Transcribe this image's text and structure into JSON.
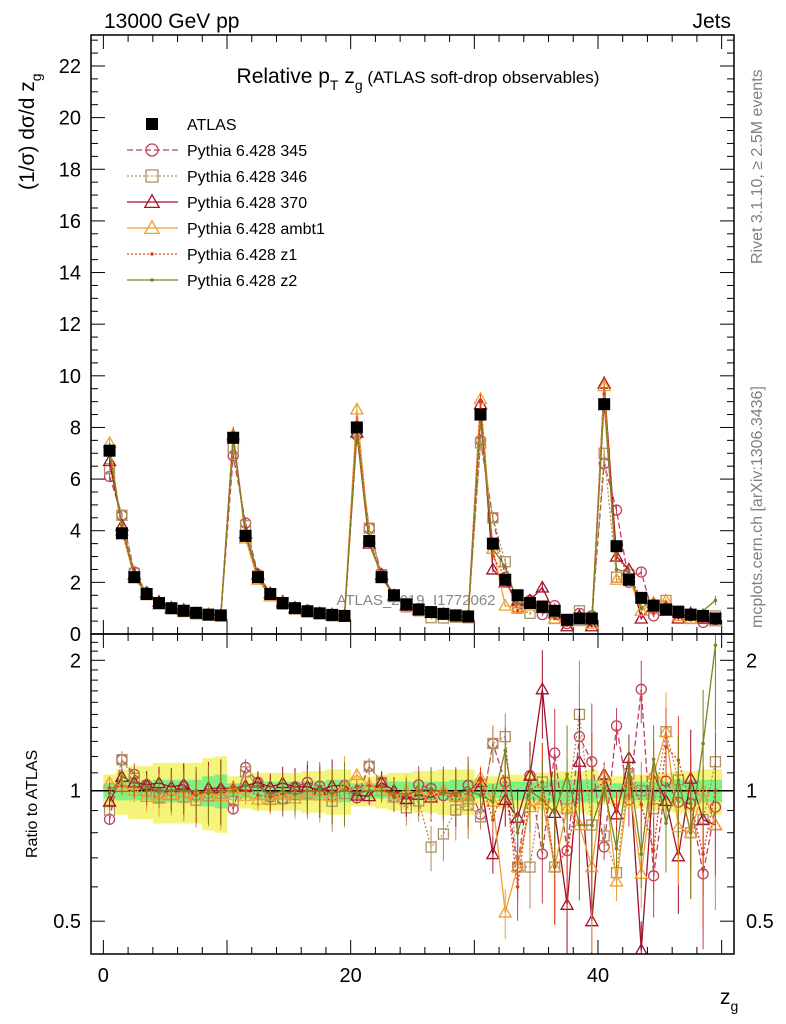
{
  "header": {
    "left": "13000 GeV pp",
    "right": "Jets"
  },
  "side_text": {
    "rivet": "Rivet 3.1.10, ≥ 2.5M events",
    "mcplots": "mcplots.cern.ch [arXiv:1306.3436]"
  },
  "watermark": "ATLAS_2019_I1772062",
  "chart_data": [
    {
      "type": "line",
      "title_main": "Relative p",
      "title_sub1": "T",
      "title_mid": " z",
      "title_sub2": "g",
      "title_rest": " (ATLAS soft-drop observables)",
      "ylabel_main": "(1/σ) dσ/d z",
      "ylabel_sub": "g",
      "xlabel_main": "z",
      "xlabel_sub": "g",
      "xlim": [
        -1,
        51
      ],
      "ylim": [
        0,
        23.2
      ],
      "y_ticks": [
        0,
        2,
        4,
        6,
        8,
        10,
        12,
        14,
        16,
        18,
        20,
        22
      ],
      "x_ticks": [
        0,
        20,
        40
      ],
      "legend_position": "top-left",
      "x": [
        0.5,
        1.5,
        2.5,
        3.5,
        4.5,
        5.5,
        6.5,
        7.5,
        8.5,
        9.5,
        10.5,
        11.5,
        12.5,
        13.5,
        14.5,
        15.5,
        16.5,
        17.5,
        18.5,
        19.5,
        20.5,
        21.5,
        22.5,
        23.5,
        24.5,
        25.5,
        26.5,
        27.5,
        28.5,
        29.5,
        30.5,
        31.5,
        32.5,
        33.5,
        34.5,
        35.5,
        36.5,
        37.5,
        38.5,
        39.5,
        40.5,
        41.5,
        42.5,
        43.5,
        44.5,
        45.5,
        46.5,
        47.5,
        48.5,
        49.5
      ],
      "series": [
        {
          "name": "ATLAS",
          "color": "#000000",
          "marker": "filled-square",
          "line": "none",
          "values": [
            7.1,
            3.9,
            2.2,
            1.55,
            1.2,
            1.0,
            0.9,
            0.82,
            0.75,
            0.72,
            7.6,
            3.8,
            2.2,
            1.55,
            1.2,
            1.0,
            0.88,
            0.8,
            0.74,
            0.7,
            8.0,
            3.6,
            2.2,
            1.5,
            1.15,
            0.95,
            0.85,
            0.78,
            0.72,
            0.68,
            8.5,
            3.5,
            2.1,
            1.5,
            1.2,
            1.05,
            0.9,
            0.55,
            0.6,
            0.6,
            8.9,
            3.4,
            2.1,
            1.4,
            1.1,
            0.95,
            0.85,
            0.75,
            0.7,
            0.6
          ]
        },
        {
          "name": "Pythia 6.428 345",
          "color": "#c0405a",
          "marker": "open-circle",
          "line": "dashed",
          "values": [
            6.1,
            4.6,
            2.4,
            1.6,
            1.18,
            1.0,
            0.92,
            0.8,
            0.74,
            0.72,
            6.9,
            4.3,
            2.3,
            1.5,
            1.15,
            1.02,
            0.92,
            0.82,
            0.72,
            0.72,
            7.7,
            4.1,
            2.3,
            1.45,
            1.1,
            0.98,
            0.86,
            0.76,
            0.7,
            0.7,
            7.5,
            4.5,
            2.2,
            1.0,
            1.3,
            0.75,
            1.1,
            0.4,
            0.8,
            0.7,
            6.6,
            4.8,
            2.0,
            2.4,
            0.7,
            1.0,
            0.8,
            0.7,
            0.45,
            0.55
          ]
        },
        {
          "name": "Pythia 6.428 346",
          "color": "#b09060",
          "marker": "open-square",
          "line": "dotted",
          "values": [
            6.4,
            4.6,
            2.35,
            1.55,
            1.16,
            0.98,
            0.87,
            0.78,
            0.73,
            0.71,
            7.2,
            4.2,
            2.25,
            1.48,
            1.15,
            0.98,
            0.87,
            0.8,
            0.7,
            0.69,
            7.9,
            4.1,
            2.3,
            1.45,
            1.05,
            0.9,
            0.63,
            0.62,
            0.65,
            0.63,
            7.4,
            4.5,
            2.8,
            1.0,
            0.8,
            1.1,
            0.6,
            0.5,
            0.9,
            0.5,
            7.0,
            2.2,
            2.3,
            1.4,
            1.0,
            1.3,
            0.9,
            0.6,
            0.6,
            0.7
          ]
        },
        {
          "name": "Pythia 6.428 370",
          "color": "#a0102a",
          "marker": "open-triangle",
          "line": "solid",
          "values": [
            6.7,
            4.2,
            2.3,
            1.6,
            1.25,
            1.02,
            0.93,
            0.8,
            0.76,
            0.73,
            7.7,
            3.9,
            2.3,
            1.58,
            1.25,
            1.02,
            0.9,
            0.8,
            0.76,
            0.72,
            7.8,
            3.5,
            2.3,
            1.5,
            1.1,
            0.93,
            0.82,
            0.78,
            0.7,
            0.65,
            8.9,
            2.5,
            2.0,
            1.3,
            1.3,
            1.8,
            0.8,
            0.3,
            0.7,
            0.3,
            9.7,
            3.0,
            2.5,
            0.6,
            1.2,
            0.9,
            0.6,
            0.8,
            0.6,
            0.5
          ]
        },
        {
          "name": "Pythia 6.428 ambt1",
          "color": "#f0a030",
          "marker": "open-triangle",
          "line": "solid",
          "values": [
            7.4,
            4.0,
            2.2,
            1.5,
            1.15,
            0.98,
            0.87,
            0.8,
            0.74,
            0.7,
            7.7,
            3.7,
            2.1,
            1.48,
            1.18,
            0.96,
            0.86,
            0.78,
            0.72,
            0.72,
            8.7,
            3.7,
            2.2,
            1.45,
            1.15,
            0.94,
            0.83,
            0.78,
            0.7,
            0.65,
            9.1,
            3.3,
            1.1,
            1.0,
            1.1,
            1.0,
            0.6,
            0.5,
            0.5,
            0.4,
            9.6,
            2.1,
            2.2,
            0.9,
            1.2,
            1.3,
            0.7,
            0.6,
            0.7,
            0.5
          ]
        },
        {
          "name": "Pythia 6.428 z1",
          "color": "#e04020",
          "marker": "small-dot",
          "line": "dotted",
          "values": [
            7.2,
            4.0,
            2.25,
            1.55,
            1.2,
            1.0,
            0.9,
            0.8,
            0.75,
            0.72,
            7.8,
            3.8,
            2.15,
            1.5,
            1.18,
            1.0,
            0.88,
            0.8,
            0.73,
            0.7,
            8.2,
            3.7,
            2.25,
            1.45,
            1.12,
            0.95,
            0.85,
            0.78,
            0.7,
            0.67,
            9.0,
            3.0,
            2.2,
            0.9,
            1.2,
            1.1,
            0.6,
            0.4,
            0.6,
            0.6,
            9.3,
            3.1,
            2.3,
            1.3,
            0.8,
            1.2,
            1.0,
            0.7,
            0.5,
            0.6
          ]
        },
        {
          "name": "Pythia 6.428 z2",
          "color": "#808020",
          "marker": "small-dot",
          "line": "solid",
          "values": [
            7.0,
            4.2,
            2.3,
            1.58,
            1.2,
            1.0,
            0.9,
            0.82,
            0.74,
            0.72,
            7.6,
            3.9,
            2.25,
            1.52,
            1.2,
            0.98,
            0.88,
            0.8,
            0.73,
            0.7,
            7.9,
            3.6,
            2.2,
            1.48,
            1.13,
            0.95,
            0.86,
            0.77,
            0.71,
            0.68,
            8.3,
            3.3,
            2.6,
            1.2,
            1.2,
            1.0,
            0.8,
            0.6,
            0.5,
            0.5,
            9.0,
            2.5,
            2.4,
            1.0,
            1.3,
            0.8,
            0.9,
            0.6,
            0.9,
            1.3
          ]
        }
      ]
    },
    {
      "type": "line",
      "ylabel": "Ratio to ATLAS",
      "xlim": [
        -1,
        51
      ],
      "ylim": [
        0.42,
        2.3
      ],
      "y_scale": "log",
      "y_ticks": [
        0.5,
        1,
        2
      ],
      "x_ticks": [
        0,
        20,
        40
      ],
      "reference_line": 1,
      "uncertainty_bands": {
        "inner_color": "#80f080",
        "outer_color": "#f4f47a",
        "inner_halfwidth": [
          0.04,
          0.05,
          0.05,
          0.05,
          0.06,
          0.06,
          0.06,
          0.06,
          0.08,
          0.09,
          0.04,
          0.04,
          0.05,
          0.05,
          0.05,
          0.05,
          0.05,
          0.05,
          0.06,
          0.06,
          0.04,
          0.04,
          0.04,
          0.05,
          0.05,
          0.05,
          0.05,
          0.05,
          0.06,
          0.06,
          0.04,
          0.04,
          0.05,
          0.05,
          0.05,
          0.05,
          0.06,
          0.06,
          0.06,
          0.06,
          0.04,
          0.04,
          0.05,
          0.05,
          0.05,
          0.05,
          0.06,
          0.06,
          0.06,
          0.06
        ],
        "outer_halfwidth": [
          0.09,
          0.12,
          0.14,
          0.14,
          0.16,
          0.16,
          0.16,
          0.16,
          0.19,
          0.2,
          0.08,
          0.09,
          0.1,
          0.1,
          0.1,
          0.1,
          0.11,
          0.11,
          0.12,
          0.12,
          0.08,
          0.08,
          0.09,
          0.1,
          0.1,
          0.11,
          0.11,
          0.12,
          0.12,
          0.12,
          0.07,
          0.08,
          0.09,
          0.09,
          0.1,
          0.1,
          0.11,
          0.11,
          0.11,
          0.12,
          0.07,
          0.08,
          0.09,
          0.09,
          0.1,
          0.1,
          0.11,
          0.11,
          0.12,
          0.12
        ]
      }
    }
  ]
}
